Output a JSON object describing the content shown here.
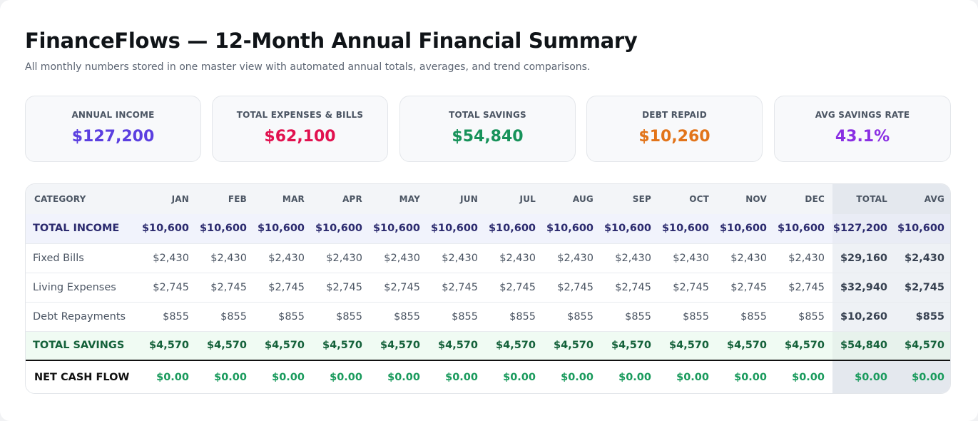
{
  "header": {
    "title": "FinanceFlows — 12-Month Annual Financial Summary",
    "subtitle": "All monthly numbers stored in one master view with automated annual totals, averages, and trend comparisons."
  },
  "kpis": [
    {
      "label": "ANNUAL INCOME",
      "value": "$127,200",
      "color": "#5b3fe0"
    },
    {
      "label": "TOTAL EXPENSES & BILLS",
      "value": "$62,100",
      "color": "#e1114f"
    },
    {
      "label": "TOTAL SAVINGS",
      "value": "$54,840",
      "color": "#17925a"
    },
    {
      "label": "DEBT REPAID",
      "value": "$10,260",
      "color": "#e2741a"
    },
    {
      "label": "AVG SAVINGS RATE",
      "value": "43.1%",
      "color": "#8a2fe3"
    }
  ],
  "table": {
    "headers": [
      "CATEGORY",
      "JAN",
      "FEB",
      "MAR",
      "APR",
      "MAY",
      "JUN",
      "JUL",
      "AUG",
      "SEP",
      "OCT",
      "NOV",
      "DEC",
      "TOTAL",
      "AVG"
    ],
    "rows": [
      {
        "type": "income",
        "label": "TOTAL INCOME",
        "months": [
          "$10,600",
          "$10,600",
          "$10,600",
          "$10,600",
          "$10,600",
          "$10,600",
          "$10,600",
          "$10,600",
          "$10,600",
          "$10,600",
          "$10,600",
          "$10,600"
        ],
        "total": "$127,200",
        "avg": "$10,600"
      },
      {
        "type": "regular",
        "label": "Fixed Bills",
        "months": [
          "$2,430",
          "$2,430",
          "$2,430",
          "$2,430",
          "$2,430",
          "$2,430",
          "$2,430",
          "$2,430",
          "$2,430",
          "$2,430",
          "$2,430",
          "$2,430"
        ],
        "total": "$29,160",
        "avg": "$2,430"
      },
      {
        "type": "regular",
        "label": "Living Expenses",
        "months": [
          "$2,745",
          "$2,745",
          "$2,745",
          "$2,745",
          "$2,745",
          "$2,745",
          "$2,745",
          "$2,745",
          "$2,745",
          "$2,745",
          "$2,745",
          "$2,745"
        ],
        "total": "$32,940",
        "avg": "$2,745"
      },
      {
        "type": "regular",
        "label": "Debt Repayments",
        "months": [
          "$855",
          "$855",
          "$855",
          "$855",
          "$855",
          "$855",
          "$855",
          "$855",
          "$855",
          "$855",
          "$855",
          "$855"
        ],
        "total": "$10,260",
        "avg": "$855"
      },
      {
        "type": "savings",
        "label": "TOTAL SAVINGS",
        "months": [
          "$4,570",
          "$4,570",
          "$4,570",
          "$4,570",
          "$4,570",
          "$4,570",
          "$4,570",
          "$4,570",
          "$4,570",
          "$4,570",
          "$4,570",
          "$4,570"
        ],
        "total": "$54,840",
        "avg": "$4,570"
      },
      {
        "type": "net",
        "label": "NET CASH FLOW",
        "months": [
          "$0.00",
          "$0.00",
          "$0.00",
          "$0.00",
          "$0.00",
          "$0.00",
          "$0.00",
          "$0.00",
          "$0.00",
          "$0.00",
          "$0.00",
          "$0.00"
        ],
        "total": "$0.00",
        "avg": "$0.00"
      }
    ]
  }
}
